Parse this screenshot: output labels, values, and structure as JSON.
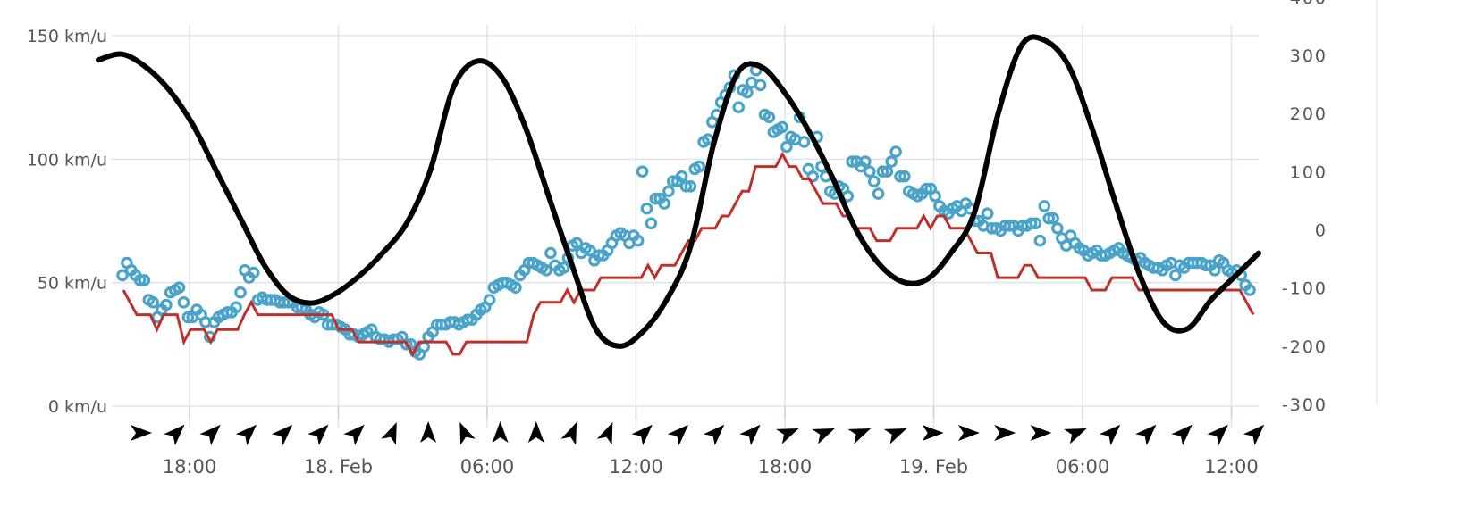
{
  "chart_data": {
    "type": "line",
    "title": "",
    "xlabel": "",
    "ylabel": "",
    "x_axis": {
      "start": "17. Feb 14:00",
      "end": "19. Feb 13:00",
      "tick_labels": [
        "18:00",
        "18. Feb",
        "06:00",
        "12:00",
        "18:00",
        "19. Feb",
        "06:00",
        "12:00"
      ]
    },
    "y_left": {
      "ylim": [
        0,
        150
      ],
      "unit": "km/u",
      "tick_values": [
        0,
        50,
        100,
        150
      ],
      "tick_labels": [
        "0 km/u",
        "50 km/u",
        "100 km/u",
        "150 km/u"
      ]
    },
    "y_right": {
      "ylim": [
        -300,
        300
      ],
      "tick_values": [
        -300,
        -200,
        -100,
        0,
        100,
        200,
        300
      ],
      "tick_labels": [
        "-300",
        "-200",
        "-100",
        "0",
        "100",
        "200",
        "300"
      ]
    },
    "grid": true,
    "series": [
      {
        "style": "scatter",
        "axis": "left",
        "color": "#4aa3c8",
        "values": [
          53,
          58,
          55,
          53,
          51,
          51,
          43,
          42,
          36,
          39,
          41,
          46,
          47,
          48,
          42,
          36,
          36,
          39,
          37,
          34,
          28,
          34,
          36,
          37,
          38,
          38,
          40,
          46,
          55,
          52,
          54,
          43,
          44,
          43,
          43,
          43,
          42,
          42,
          42,
          42,
          40,
          40,
          39,
          37,
          36,
          38,
          37,
          33,
          33,
          33,
          32,
          31,
          29,
          29,
          28,
          29,
          30,
          31,
          28,
          27,
          27,
          26,
          27,
          27,
          28,
          25,
          25,
          22,
          21,
          24,
          28,
          30,
          33,
          33,
          33,
          34,
          34,
          33,
          34,
          35,
          35,
          37,
          39,
          40,
          43,
          48,
          49,
          50,
          50,
          49,
          48,
          53,
          55,
          58,
          58,
          57,
          56,
          55,
          62,
          57,
          55,
          56,
          60,
          65,
          66,
          62,
          64,
          63,
          59,
          61,
          61,
          63,
          66,
          69,
          70,
          69,
          66,
          69,
          67,
          95,
          80,
          74,
          84,
          84,
          82,
          87,
          91,
          91,
          93,
          89,
          89,
          96,
          97,
          107,
          108,
          115,
          118,
          123,
          126,
          129,
          134,
          121,
          128,
          127,
          131,
          136,
          130,
          118,
          117,
          111,
          112,
          113,
          105,
          109,
          108,
          117,
          107,
          96,
          93,
          109,
          97,
          93,
          87,
          86,
          89,
          88,
          85,
          99,
          99,
          97,
          99,
          95,
          91,
          86,
          95,
          95,
          99,
          103,
          93,
          93,
          87,
          86,
          85,
          86,
          88,
          88,
          85,
          81,
          79,
          78,
          80,
          81,
          79,
          82,
          80,
          75,
          75,
          73,
          78,
          72,
          72,
          71,
          73,
          73,
          73,
          71,
          73,
          73,
          74,
          74,
          67,
          81,
          76,
          76,
          72,
          68,
          65,
          69,
          66,
          64,
          63,
          61,
          62,
          63,
          61,
          61,
          62,
          63,
          64,
          62,
          61,
          60,
          59,
          60,
          58,
          57,
          56,
          56,
          55,
          57,
          58,
          53,
          57,
          56,
          58,
          58,
          58,
          58,
          57,
          57,
          55,
          59,
          58,
          55,
          54,
          55,
          53,
          49,
          47
        ]
      },
      {
        "style": "line",
        "axis": "left",
        "color": "#c0302b",
        "values": [
          47,
          42,
          37,
          37,
          37,
          31,
          37,
          37,
          37,
          26,
          31,
          31,
          31,
          26,
          31,
          31,
          31,
          31,
          37,
          42,
          37,
          37,
          37,
          37,
          37,
          37,
          37,
          37,
          37,
          37,
          37,
          37,
          31,
          31,
          31,
          26,
          26,
          26,
          26,
          26,
          26,
          26,
          26,
          21,
          26,
          26,
          26,
          26,
          26,
          21,
          21,
          26,
          26,
          26,
          26,
          26,
          26,
          26,
          26,
          26,
          26,
          37,
          42,
          42,
          42,
          42,
          47,
          42,
          47,
          47,
          47,
          52,
          52,
          52,
          52,
          52,
          52,
          52,
          57,
          52,
          57,
          57,
          57,
          62,
          67,
          67,
          72,
          72,
          72,
          77,
          77,
          82,
          87,
          87,
          97,
          97,
          97,
          97,
          102,
          97,
          97,
          92,
          92,
          87,
          82,
          82,
          82,
          77,
          77,
          72,
          72,
          72,
          67,
          67,
          67,
          72,
          72,
          72,
          72,
          77,
          72,
          77,
          77,
          72,
          72,
          72,
          67,
          62,
          62,
          62,
          52,
          52,
          52,
          52,
          57,
          57,
          52,
          52,
          52,
          52,
          52,
          52,
          52,
          52,
          47,
          47,
          47,
          52,
          52,
          52,
          52,
          47,
          47,
          47,
          47,
          47,
          47,
          47,
          47,
          47,
          47,
          47,
          47,
          47,
          47,
          47,
          47,
          42,
          37
        ]
      },
      {
        "style": "line",
        "axis": "right",
        "color": "#000000",
        "values": [
          292,
          302,
          280,
          240,
          180,
          100,
          20,
          -60,
          -112,
          -126,
          -110,
          -80,
          -40,
          10,
          100,
          245,
          290,
          265,
          180,
          60,
          -60,
          -170,
          -200,
          -175,
          -120,
          -30,
          150,
          270,
          280,
          235,
          170,
          90,
          0,
          -60,
          -90,
          -85,
          -40,
          30,
          200,
          318,
          325,
          280,
          170,
          40,
          -80,
          -160,
          -170,
          -120,
          -80,
          -40
        ]
      }
    ],
    "wind_direction_arrows": {
      "icon": "wind-arrow-icon",
      "color": "#000000",
      "values": [
        "E",
        "NE",
        "NE",
        "NE",
        "NE",
        "NE",
        "NE",
        "NNE",
        "N",
        "NNW",
        "N",
        "N",
        "NNE",
        "NNE",
        "NE",
        "NE",
        "NE",
        "NE",
        "ENE",
        "ENE",
        "ENE",
        "ENE",
        "E",
        "E",
        "E",
        "E",
        "ENE",
        "NE",
        "NE",
        "NE",
        "NE",
        "NE"
      ]
    }
  }
}
